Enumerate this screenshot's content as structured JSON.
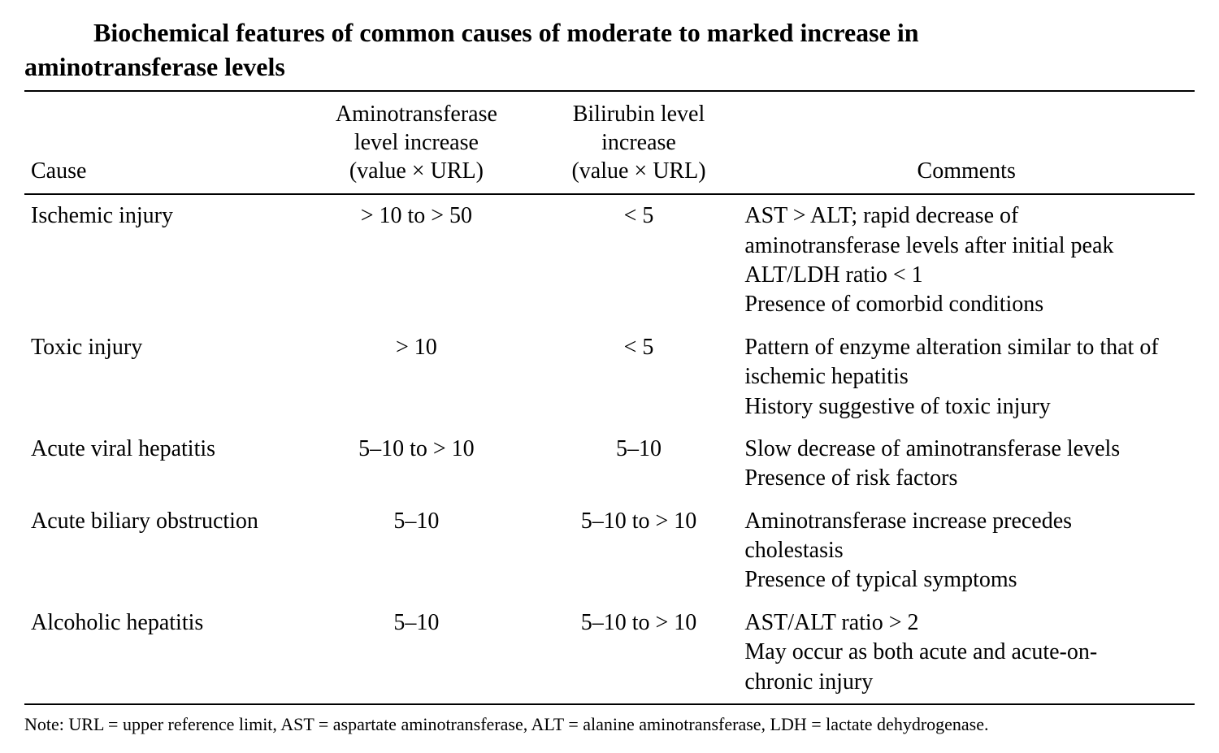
{
  "title": {
    "line1": "Biochemical features of common causes of moderate to marked increase in",
    "line2": "aminotransferase levels"
  },
  "table": {
    "headers": {
      "cause": "Cause",
      "amino": "Aminotransferase\nlevel increase\n(value × URL)",
      "bili": "Bilirubin level\nincrease\n(value × URL)",
      "comments": "Comments"
    },
    "rows": [
      {
        "cause": "Ischemic injury",
        "amino": "> 10 to > 50",
        "bili": "< 5",
        "comments": [
          "AST > ALT; rapid decrease of",
          "aminotransferase levels after initial peak",
          "ALT/LDH ratio < 1",
          "Presence of comorbid conditions"
        ]
      },
      {
        "cause": "Toxic injury",
        "amino": "> 10",
        "bili": "< 5",
        "comments": [
          "Pattern of enzyme alteration similar to that of",
          "ischemic hepatitis",
          "History suggestive of toxic injury"
        ]
      },
      {
        "cause": "Acute viral hepatitis",
        "amino": "5–10 to > 10",
        "bili": "5–10",
        "comments": [
          "Slow decrease of aminotransferase levels",
          "Presence of risk factors"
        ]
      },
      {
        "cause": "Acute biliary obstruction",
        "amino": "5–10",
        "bili": "5–10 to > 10",
        "comments": [
          "Aminotransferase increase precedes",
          "cholestasis",
          "Presence of typical symptoms"
        ]
      },
      {
        "cause": "Alcoholic hepatitis",
        "amino": "5–10",
        "bili": "5–10 to > 10",
        "comments": [
          "AST/ALT ratio > 2",
          "May occur as both acute and acute-on-",
          "chronic injury"
        ]
      }
    ]
  },
  "note": "Note: URL = upper reference limit, AST = aspartate aminotransferase, ALT = alanine aminotransferase, LDH = lactate dehydrogenase.",
  "styling": {
    "background_color": "#ffffff",
    "text_color": "#000000",
    "border_color": "#000000",
    "font_family": "Times New Roman",
    "title_fontsize": 32,
    "body_fontsize": 28,
    "note_fontsize": 22,
    "column_widths": [
      "23%",
      "21%",
      "17%",
      "39%"
    ],
    "rule_thickness": 2
  }
}
